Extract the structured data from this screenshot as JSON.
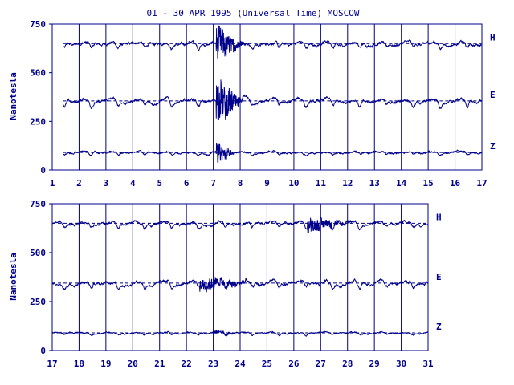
{
  "title": "01 - 30 APR 1995 (Universal Time) MOSCOW",
  "colors": {
    "ink": "#00008b",
    "background": "#ffffff"
  },
  "chart_data": [
    {
      "type": "line",
      "panel": "top",
      "ylabel": "Nanotesla",
      "ylim": [
        0,
        750
      ],
      "yticks": [
        0,
        250,
        500,
        750
      ],
      "xlim": [
        1,
        17
      ],
      "xticks": [
        "1",
        "2",
        "3",
        "4",
        "5",
        "6",
        "7",
        "8",
        "9",
        "10",
        "11",
        "12",
        "13",
        "14",
        "15",
        "16",
        "17"
      ],
      "data_start_day": 1.4,
      "grid": "vertical lines at each day",
      "series": [
        {
          "name": "H",
          "baseline": 650,
          "daily_dip": 25,
          "noise": 8,
          "storm": {
            "start": 7.1,
            "end": 8.2,
            "amplitude": 90
          }
        },
        {
          "name": "E",
          "baseline": 355,
          "daily_dip": 30,
          "noise": 8,
          "storm": {
            "start": 7.1,
            "end": 8.2,
            "amplitude": 120
          }
        },
        {
          "name": "Z",
          "baseline": 90,
          "daily_dip": 12,
          "noise": 5,
          "storm": {
            "start": 7.1,
            "end": 7.8,
            "amplitude": 60
          }
        }
      ]
    },
    {
      "type": "line",
      "panel": "bottom",
      "ylabel": "Nanotesla",
      "ylim": [
        0,
        750
      ],
      "yticks": [
        0,
        250,
        500,
        750
      ],
      "xlim": [
        17,
        31
      ],
      "xticks": [
        "17",
        "18",
        "19",
        "20",
        "21",
        "22",
        "23",
        "24",
        "25",
        "26",
        "27",
        "28",
        "29",
        "30",
        "31"
      ],
      "data_start_day": 17,
      "grid": "vertical lines at each day",
      "series": [
        {
          "name": "H",
          "baseline": 650,
          "daily_dip": 25,
          "noise": 7,
          "storm": {
            "start": 26.5,
            "end": 28.2,
            "amplitude": 40
          }
        },
        {
          "name": "E",
          "baseline": 345,
          "daily_dip": 28,
          "noise": 8,
          "storm": {
            "start": 22.5,
            "end": 24.8,
            "amplitude": 35
          }
        },
        {
          "name": "Z",
          "baseline": 90,
          "daily_dip": 10,
          "noise": 4,
          "storm": {
            "start": 23.0,
            "end": 24.0,
            "amplitude": 10
          }
        }
      ]
    }
  ]
}
